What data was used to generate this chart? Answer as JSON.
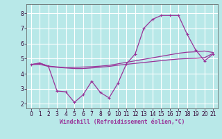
{
  "xlabel": "Windchill (Refroidissement éolien,°C)",
  "background_color": "#b8e8e8",
  "line_color": "#993399",
  "grid_color": "#aadddd",
  "xlim": [
    -0.5,
    21.5
  ],
  "ylim": [
    1.7,
    8.6
  ],
  "xticks": [
    0,
    1,
    2,
    3,
    4,
    5,
    6,
    7,
    8,
    9,
    10,
    11,
    12,
    13,
    14,
    15,
    16,
    17,
    18,
    19,
    20,
    21
  ],
  "yticks": [
    2,
    3,
    4,
    5,
    6,
    7,
    8
  ],
  "line1_x": [
    0,
    1,
    2,
    3,
    4,
    5,
    6,
    7,
    8,
    9,
    10,
    11,
    12,
    13,
    14,
    15,
    16,
    17,
    18,
    19,
    20,
    21
  ],
  "line1_y": [
    4.6,
    4.7,
    4.5,
    4.45,
    4.4,
    4.42,
    4.44,
    4.46,
    4.5,
    4.55,
    4.65,
    4.75,
    4.85,
    4.95,
    5.05,
    5.15,
    5.25,
    5.35,
    5.42,
    5.45,
    5.5,
    5.4
  ],
  "line2_x": [
    0,
    1,
    2,
    3,
    4,
    5,
    6,
    7,
    8,
    9,
    10,
    11,
    12,
    13,
    14,
    15,
    16,
    17,
    18,
    19,
    20,
    21
  ],
  "line2_y": [
    4.6,
    4.7,
    4.5,
    2.85,
    2.8,
    2.1,
    2.6,
    3.5,
    2.75,
    2.4,
    3.35,
    4.65,
    5.3,
    7.0,
    7.6,
    7.85,
    7.85,
    7.85,
    6.6,
    5.55,
    4.85,
    5.3
  ],
  "line3_x": [
    0,
    1,
    2,
    3,
    4,
    5,
    6,
    7,
    8,
    9,
    10,
    11,
    12,
    13,
    14,
    15,
    16,
    17,
    18,
    19,
    20,
    21
  ],
  "line3_y": [
    4.6,
    4.62,
    4.48,
    4.42,
    4.38,
    4.34,
    4.34,
    4.38,
    4.43,
    4.48,
    4.56,
    4.62,
    4.68,
    4.74,
    4.8,
    4.86,
    4.92,
    4.97,
    5.0,
    5.02,
    5.06,
    5.35
  ]
}
